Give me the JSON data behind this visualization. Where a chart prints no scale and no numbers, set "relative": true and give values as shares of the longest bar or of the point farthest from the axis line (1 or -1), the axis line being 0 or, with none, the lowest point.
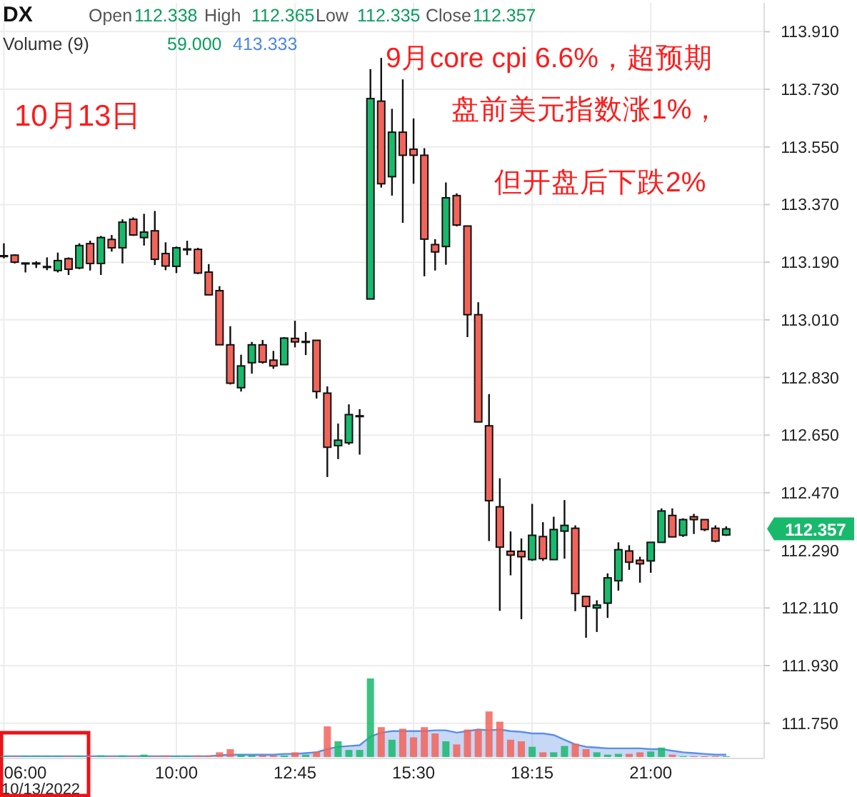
{
  "chart_data": [
    {
      "type": "candlestick",
      "title": "DX",
      "x": [
        6,
        6.25,
        6.5,
        6.75,
        7,
        7.25,
        7.5,
        7.75,
        8,
        8.25,
        8.5,
        8.75,
        9,
        9.25,
        9.5,
        9.75,
        10,
        10.25,
        10.5,
        10.75,
        11,
        11.25,
        11.5,
        11.75,
        12,
        12.25,
        12.5,
        12.75,
        13,
        13.25,
        13.5,
        13.75,
        14,
        14.25,
        14.5,
        14.75,
        15,
        15.25,
        15.5,
        15.75,
        16,
        16.25,
        16.5,
        16.75,
        17,
        17.25,
        17.5,
        17.75,
        18,
        18.25,
        18.5,
        18.75,
        19,
        19.25,
        19.5,
        19.75,
        20,
        20.25,
        20.5,
        20.75,
        21,
        21.25,
        21.5,
        21.75,
        22,
        22.25,
        22.5,
        22.75
      ],
      "ohlc": [
        [
          113.209,
          113.249,
          113.202,
          113.209
        ],
        [
          113.212,
          113.215,
          113.186,
          113.19
        ],
        [
          113.186,
          113.187,
          113.158,
          113.186
        ],
        [
          113.186,
          113.193,
          113.172,
          113.186
        ],
        [
          113.175,
          113.205,
          113.165,
          113.175
        ],
        [
          113.164,
          113.22,
          113.158,
          113.195
        ],
        [
          113.201,
          113.205,
          113.15,
          113.168
        ],
        [
          113.172,
          113.249,
          113.168,
          113.242
        ],
        [
          113.248,
          113.257,
          113.164,
          113.186
        ],
        [
          113.186,
          113.272,
          113.15,
          113.267
        ],
        [
          113.261,
          113.275,
          113.223,
          113.235
        ],
        [
          113.235,
          113.324,
          113.186,
          113.315
        ],
        [
          113.324,
          113.33,
          113.272,
          113.275
        ],
        [
          113.267,
          113.341,
          113.242,
          113.284
        ],
        [
          113.288,
          113.35,
          113.181,
          113.199
        ],
        [
          113.217,
          113.252,
          113.165,
          113.178
        ],
        [
          113.177,
          113.239,
          113.156,
          113.235
        ],
        [
          113.23,
          113.257,
          113.212,
          113.23
        ],
        [
          113.23,
          113.235,
          113.153,
          113.156
        ],
        [
          113.159,
          113.184,
          113.088,
          113.088
        ],
        [
          113.101,
          113.115,
          112.932,
          112.932
        ],
        [
          112.932,
          112.99,
          112.808,
          112.812
        ],
        [
          112.798,
          112.901,
          112.786,
          112.866
        ],
        [
          112.876,
          112.941,
          112.842,
          112.932
        ],
        [
          112.932,
          112.947,
          112.873,
          112.878
        ],
        [
          112.884,
          112.913,
          112.857,
          112.866
        ],
        [
          112.87,
          112.956,
          112.869,
          112.953
        ],
        [
          112.952,
          113.007,
          112.924,
          112.941
        ],
        [
          112.941,
          112.972,
          112.9,
          112.941
        ],
        [
          112.946,
          112.946,
          112.764,
          112.786
        ],
        [
          112.781,
          112.802,
          112.519,
          112.612
        ],
        [
          112.617,
          112.686,
          112.575,
          112.634
        ],
        [
          112.626,
          112.746,
          112.62,
          112.714
        ],
        [
          112.709,
          112.731,
          112.589,
          112.709
        ],
        [
          113.075,
          113.793,
          113.075,
          113.701
        ],
        [
          113.693,
          113.828,
          113.423,
          113.435
        ],
        [
          113.457,
          113.669,
          113.398,
          113.596
        ],
        [
          113.596,
          113.761,
          113.313,
          113.524
        ],
        [
          113.543,
          113.639,
          113.435,
          113.524
        ],
        [
          113.524,
          113.546,
          113.146,
          113.262
        ],
        [
          113.245,
          113.262,
          113.164,
          113.222
        ],
        [
          113.239,
          113.439,
          113.182,
          113.391
        ],
        [
          113.398,
          113.405,
          113.302,
          113.306
        ],
        [
          113.303,
          113.303,
          112.956,
          113.026
        ],
        [
          113.026,
          113.065,
          112.691,
          112.691
        ],
        [
          112.679,
          112.778,
          112.319,
          112.445
        ],
        [
          112.426,
          112.515,
          112.101,
          112.3
        ],
        [
          112.287,
          112.349,
          112.212,
          112.275
        ],
        [
          112.287,
          112.327,
          112.075,
          112.27
        ],
        [
          112.261,
          112.435,
          112.257,
          112.337
        ],
        [
          112.333,
          112.378,
          112.257,
          112.264
        ],
        [
          112.261,
          112.395,
          112.261,
          112.355
        ],
        [
          112.35,
          112.447,
          112.264,
          112.368
        ],
        [
          112.359,
          112.368,
          112.1,
          112.155
        ],
        [
          112.146,
          112.146,
          112.017,
          112.115
        ],
        [
          112.11,
          112.134,
          112.035,
          112.119
        ],
        [
          112.125,
          112.218,
          112.079,
          112.204
        ],
        [
          112.195,
          112.315,
          112.164,
          112.292
        ],
        [
          112.288,
          112.306,
          112.229,
          112.253
        ],
        [
          112.259,
          112.27,
          112.189,
          112.248
        ],
        [
          112.257,
          112.315,
          112.22,
          112.315
        ],
        [
          112.315,
          112.421,
          112.315,
          112.413
        ],
        [
          112.399,
          112.421,
          112.332,
          112.332
        ],
        [
          112.337,
          112.39,
          112.332,
          112.386
        ],
        [
          112.395,
          112.404,
          112.341,
          112.386
        ],
        [
          112.386,
          112.386,
          112.35,
          112.355
        ],
        [
          112.359,
          112.368,
          112.315,
          112.319
        ],
        [
          112.338,
          112.365,
          112.335,
          112.357
        ]
      ],
      "colors": [
        "#111111",
        "#f2645a",
        "#111111",
        "#111111",
        "#111111",
        "#19b96c",
        "#f2645a",
        "#19b96c",
        "#f2645a",
        "#19b96c",
        "#f2645a",
        "#19b96c",
        "#f2645a",
        "#19b96c",
        "#f2645a",
        "#f2645a",
        "#19b96c",
        "#111111",
        "#f2645a",
        "#f2645a",
        "#f2645a",
        "#f2645a",
        "#19b96c",
        "#19b96c",
        "#f2645a",
        "#f2645a",
        "#19b96c",
        "#f2645a",
        "#111111",
        "#f2645a",
        "#f2645a",
        "#19b96c",
        "#19b96c",
        "#111111",
        "#19b96c",
        "#f2645a",
        "#19b96c",
        "#f2645a",
        "#f2645a",
        "#f2645a",
        "#f2645a",
        "#19b96c",
        "#f2645a",
        "#f2645a",
        "#f2645a",
        "#f2645a",
        "#f2645a",
        "#f2645a",
        "#f2645a",
        "#19b96c",
        "#f2645a",
        "#19b96c",
        "#19b96c",
        "#f2645a",
        "#f2645a",
        "#19b96c",
        "#19b96c",
        "#19b96c",
        "#f2645a",
        "#f2645a",
        "#19b96c",
        "#19b96c",
        "#f2645a",
        "#19b96c",
        "#f2645a",
        "#f2645a",
        "#f2645a",
        "#19b96c"
      ],
      "xlim": [
        5.91,
        23.63
      ],
      "ylim": [
        111.64,
        114.0
      ],
      "xticks": [
        {
          "value": 6,
          "label": "06:00"
        },
        {
          "value": 10,
          "label": "10:00"
        },
        {
          "value": 12.75,
          "label": "12:45"
        },
        {
          "value": 15.5,
          "label": "15:30"
        },
        {
          "value": 18.25,
          "label": "18:15"
        },
        {
          "value": 21,
          "label": "21:00"
        }
      ],
      "yticks": [
        {
          "value": 111.75,
          "label": "111.750"
        },
        {
          "value": 111.93,
          "label": "111.930"
        },
        {
          "value": 112.11,
          "label": "112.110"
        },
        {
          "value": 112.29,
          "label": "112.290"
        },
        {
          "value": 112.47,
          "label": "112.470"
        },
        {
          "value": 112.65,
          "label": "112.650"
        },
        {
          "value": 112.83,
          "label": "112.830"
        },
        {
          "value": 113.01,
          "label": "113.010"
        },
        {
          "value": 113.19,
          "label": "113.190"
        },
        {
          "value": 113.37,
          "label": "113.370"
        },
        {
          "value": 113.55,
          "label": "113.550"
        },
        {
          "value": 113.73,
          "label": "113.730"
        },
        {
          "value": 113.91,
          "label": "113.910"
        }
      ],
      "grid": true,
      "annotations": [
        "112.357",
        "Open",
        "112.338",
        "High",
        "112.365",
        "Low",
        "112.335",
        "Close",
        "112.357",
        "10/13/2022",
        "10月13日",
        "9月core cpi 6.6%，超预期",
        "盘前美元指数涨1%，",
        "但开盘后下跌2%"
      ]
    },
    {
      "type": "bar",
      "title": "Volume (9)",
      "relative": true,
      "xlim": [
        5.91,
        23.63
      ],
      "x": [
        6,
        6.25,
        6.5,
        6.75,
        7,
        7.25,
        7.5,
        7.75,
        8,
        8.25,
        8.5,
        8.75,
        9,
        9.25,
        9.5,
        9.75,
        10,
        10.25,
        10.5,
        10.75,
        11,
        11.25,
        11.5,
        11.75,
        12,
        12.25,
        12.5,
        12.75,
        13,
        13.25,
        13.5,
        13.75,
        14,
        14.25,
        14.5,
        14.75,
        15,
        15.25,
        15.5,
        15.75,
        16,
        16.25,
        16.5,
        16.75,
        17,
        17.25,
        17.5,
        17.75,
        18,
        18.25,
        18.5,
        18.75,
        19,
        19.25,
        19.5,
        19.75,
        20,
        20.25,
        20.5,
        20.75,
        21,
        21.25,
        21.5,
        21.75,
        22,
        22.25,
        22.5,
        22.75
      ],
      "series": [
        {
          "type": "bar",
          "colors": [
            "#19b96c",
            "#f2645a",
            "#19b96c",
            "#19b96c",
            "#19b96c",
            "#19b96c",
            "#f2645a",
            "#19b96c",
            "#f2645a",
            "#19b96c",
            "#f2645a",
            "#19b96c",
            "#f2645a",
            "#19b96c",
            "#f2645a",
            "#f2645a",
            "#19b96c",
            "#19b96c",
            "#f2645a",
            "#f2645a",
            "#f2645a",
            "#f2645a",
            "#19b96c",
            "#19b96c",
            "#f2645a",
            "#f2645a",
            "#19b96c",
            "#f2645a",
            "#19b96c",
            "#f2645a",
            "#f2645a",
            "#19b96c",
            "#19b96c",
            "#19b96c",
            "#19b96c",
            "#f2645a",
            "#19b96c",
            "#f2645a",
            "#f2645a",
            "#f2645a",
            "#f2645a",
            "#19b96c",
            "#f2645a",
            "#f2645a",
            "#f2645a",
            "#f2645a",
            "#f2645a",
            "#f2645a",
            "#f2645a",
            "#19b96c",
            "#f2645a",
            "#19b96c",
            "#19b96c",
            "#f2645a",
            "#f2645a",
            "#19b96c",
            "#19b96c",
            "#19b96c",
            "#f2645a",
            "#f2645a",
            "#19b96c",
            "#19b96c",
            "#f2645a",
            "#19b96c",
            "#f2645a",
            "#f2645a",
            "#f2645a",
            "#19b96c"
          ],
          "values": [
            0.01,
            0.01,
            0.01,
            0.01,
            0.01,
            0.01,
            0.01,
            0.01,
            0.01,
            0.02,
            0.01,
            0.02,
            0.01,
            0.03,
            0.01,
            0.02,
            0.01,
            0.01,
            0.02,
            0.02,
            0.06,
            0.1,
            0.03,
            0.02,
            0.02,
            0.02,
            0.02,
            0.06,
            0.03,
            0.07,
            0.39,
            0.2,
            0.09,
            0.09,
            1,
            0.38,
            0.22,
            0.36,
            0.25,
            0.38,
            0.3,
            0.2,
            0.16,
            0.35,
            0.35,
            0.58,
            0.45,
            0.22,
            0.2,
            0.13,
            0.06,
            0.06,
            0.14,
            0.17,
            0.1,
            0.06,
            0.03,
            0.04,
            0.04,
            0.06,
            0.07,
            0.12,
            0.03,
            0.01,
            0.01,
            0.01,
            0.01,
            0.01
          ]
        },
        {
          "type": "area",
          "color": "#5b8fe6",
          "values": [
            0.01,
            0.01,
            0.01,
            0.01,
            0.01,
            0.01,
            0.01,
            0.01,
            0.01,
            0.01,
            0.01,
            0.01,
            0.01,
            0.01,
            0.01,
            0.01,
            0.01,
            0.01,
            0.01,
            0.01,
            0.02,
            0.03,
            0.03,
            0.03,
            0.03,
            0.03,
            0.04,
            0.04,
            0.05,
            0.06,
            0.1,
            0.13,
            0.14,
            0.15,
            0.26,
            0.31,
            0.33,
            0.33,
            0.33,
            0.33,
            0.34,
            0.34,
            0.31,
            0.33,
            0.35,
            0.34,
            0.35,
            0.33,
            0.32,
            0.3,
            0.3,
            0.28,
            0.22,
            0.16,
            0.13,
            0.12,
            0.11,
            0.11,
            0.11,
            0.11,
            0.1,
            0.1,
            0.08,
            0.06,
            0.05,
            0.04,
            0.03,
            0.03
          ]
        }
      ],
      "annotations": [
        "59.000",
        "413.333"
      ]
    }
  ]
}
